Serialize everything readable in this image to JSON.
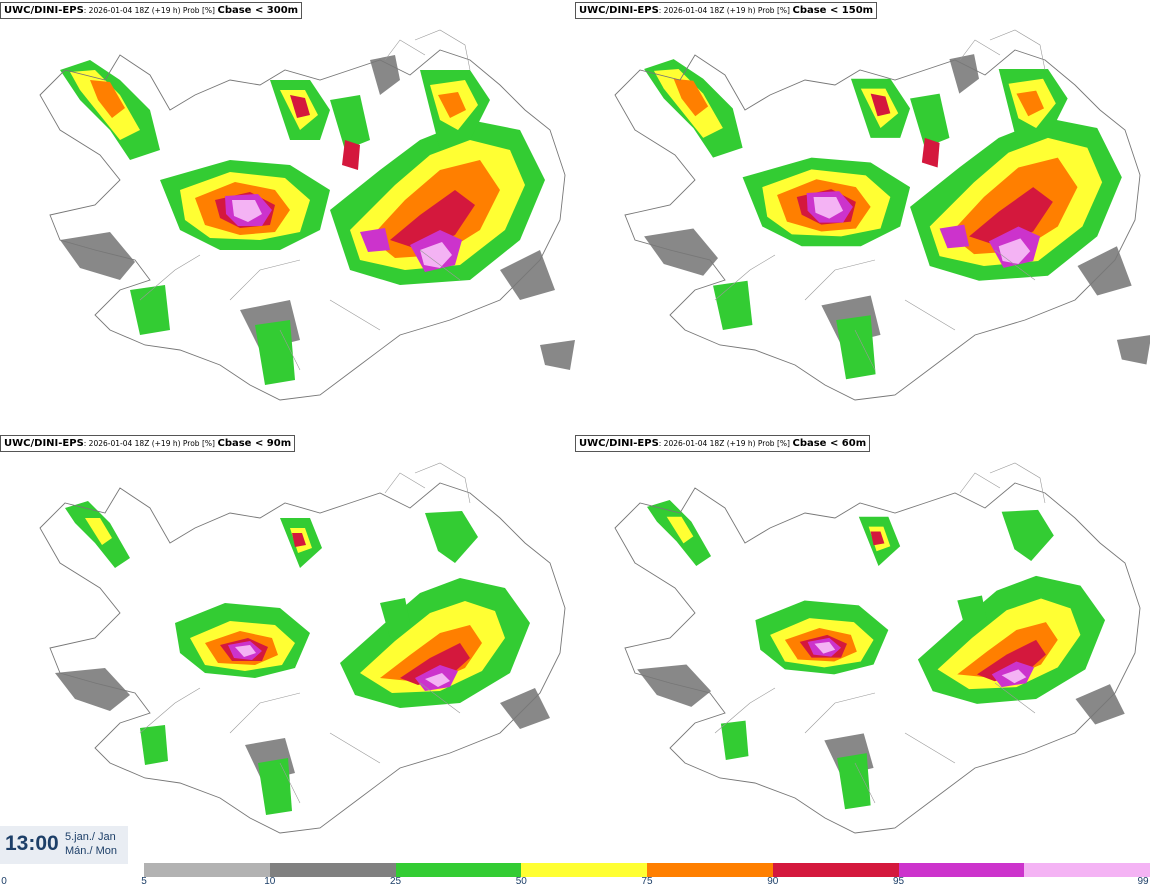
{
  "panels": [
    {
      "prefix": "UWC/DINI-EPS",
      "sub": ": 2026-01-04 18Z (+19 h) Prob [%]",
      "threshold": "Cbase < 300m"
    },
    {
      "prefix": "UWC/DINI-EPS",
      "sub": ": 2026-01-04 18Z (+19 h) Prob [%]",
      "threshold": "Cbase < 150m"
    },
    {
      "prefix": "UWC/DINI-EPS",
      "sub": ": 2026-01-04 18Z (+19 h) Prob [%]",
      "threshold": "Cbase < 90m"
    },
    {
      "prefix": "UWC/DINI-EPS",
      "sub": ": 2026-01-04 18Z (+19 h) Prob [%]",
      "threshold": "Cbase < 60m"
    }
  ],
  "time": {
    "clock": "13:00",
    "date_line1": "5.jan./ Jan",
    "date_line2": "Mán./ Mon"
  },
  "legend": {
    "ticks": [
      "0",
      "5",
      "10",
      "25",
      "50",
      "75",
      "90",
      "95",
      "99"
    ],
    "colors": [
      "#b2b2b2",
      "#808080",
      "#33cc33",
      "#ffff33",
      "#ff7f00",
      "#d4183d",
      "#cc33cc",
      "#f4b3f4"
    ]
  }
}
